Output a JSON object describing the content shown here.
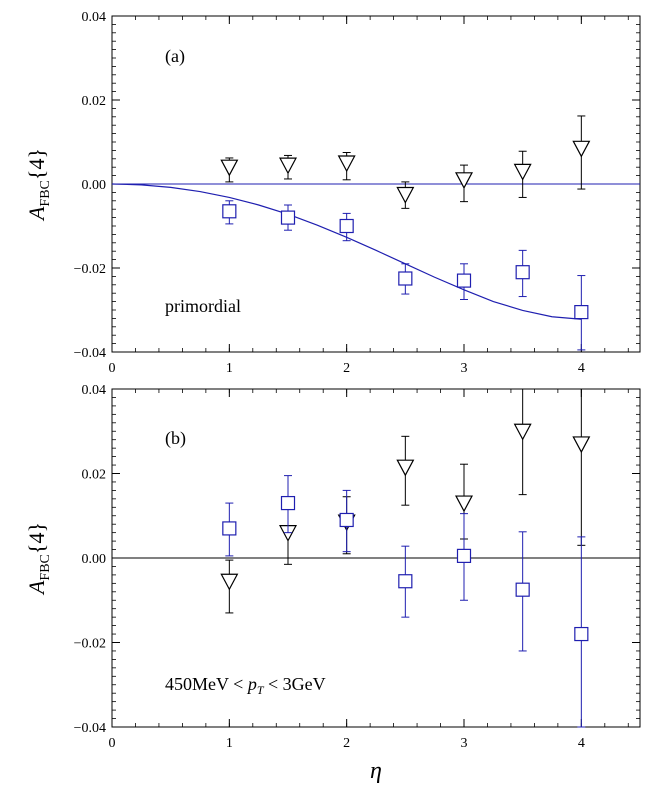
{
  "chart_data": [
    {
      "type": "scatter",
      "panel_label": "(a)",
      "annotation": "primordial",
      "ylabel_main": "A",
      "ylabel_sub": "FBC",
      "ylabel_suffix": "{4}",
      "xlabel": "",
      "xlim": [
        0,
        4.5
      ],
      "ylim": [
        -0.04,
        0.04
      ],
      "xticks": [
        0,
        1,
        2,
        3,
        4
      ],
      "xtick_labels": [
        "0",
        "1",
        "2",
        "3",
        "4"
      ],
      "yticks": [
        -0.04,
        -0.02,
        0.0,
        0.02,
        0.04
      ],
      "ytick_labels": [
        "−0.04",
        "−0.02",
        "0.00",
        "0.02",
        "0.04"
      ],
      "series": [
        {
          "marker": "triangle-down",
          "color": "#000000",
          "points": [
            {
              "x": 1.0,
              "y": 0.004,
              "lo": 0.0005,
              "hi": 0.0062
            },
            {
              "x": 1.5,
              "y": 0.0045,
              "lo": 0.0012,
              "hi": 0.0068
            },
            {
              "x": 2.0,
              "y": 0.005,
              "lo": 0.001,
              "hi": 0.0075
            },
            {
              "x": 2.5,
              "y": -0.0025,
              "lo": -0.0058,
              "hi": 0.0005
            },
            {
              "x": 3.0,
              "y": 0.001,
              "lo": -0.0042,
              "hi": 0.0045
            },
            {
              "x": 3.5,
              "y": 0.003,
              "lo": -0.0032,
              "hi": 0.0078
            },
            {
              "x": 4.0,
              "y": 0.0085,
              "lo": -0.0012,
              "hi": 0.0162
            }
          ]
        },
        {
          "marker": "square",
          "color": "#1f1fb0",
          "points": [
            {
              "x": 1.0,
              "y": -0.0065,
              "lo": -0.0095,
              "hi": -0.004
            },
            {
              "x": 1.5,
              "y": -0.008,
              "lo": -0.011,
              "hi": -0.005
            },
            {
              "x": 2.0,
              "y": -0.01,
              "lo": -0.0135,
              "hi": -0.007
            },
            {
              "x": 2.5,
              "y": -0.0225,
              "lo": -0.0262,
              "hi": -0.019
            },
            {
              "x": 3.0,
              "y": -0.023,
              "lo": -0.0275,
              "hi": -0.019
            },
            {
              "x": 3.5,
              "y": -0.021,
              "lo": -0.0268,
              "hi": -0.0158
            },
            {
              "x": 4.0,
              "y": -0.0305,
              "lo": -0.0395,
              "hi": -0.0218
            }
          ]
        }
      ],
      "reference_line": {
        "y": 0.0,
        "color": "#1f1fb0"
      },
      "fit_curve": {
        "color": "#1f1fb0",
        "points": [
          [
            0.0,
            0.0
          ],
          [
            0.25,
            -0.0002
          ],
          [
            0.5,
            -0.0008
          ],
          [
            0.75,
            -0.0018
          ],
          [
            1.0,
            -0.0032
          ],
          [
            1.25,
            -0.005
          ],
          [
            1.5,
            -0.0072
          ],
          [
            1.75,
            -0.0098
          ],
          [
            2.0,
            -0.0127
          ],
          [
            2.25,
            -0.0158
          ],
          [
            2.5,
            -0.019
          ],
          [
            2.75,
            -0.0222
          ],
          [
            3.0,
            -0.0252
          ],
          [
            3.25,
            -0.028
          ],
          [
            3.5,
            -0.0301
          ],
          [
            3.75,
            -0.0316
          ],
          [
            4.0,
            -0.0322
          ]
        ]
      }
    },
    {
      "type": "scatter",
      "panel_label": "(b)",
      "annotation_pre": "450MeV < ",
      "annotation_var": "p",
      "annotation_sub": "T",
      "annotation_post": " < 3GeV",
      "ylabel_main": "A",
      "ylabel_sub": "FBC",
      "ylabel_suffix": "{4}",
      "xlabel": "η",
      "xlim": [
        0,
        4.5
      ],
      "ylim": [
        -0.04,
        0.04
      ],
      "xticks": [
        0,
        1,
        2,
        3,
        4
      ],
      "xtick_labels": [
        "0",
        "1",
        "2",
        "3",
        "4"
      ],
      "yticks": [
        -0.04,
        -0.02,
        0.0,
        0.02,
        0.04
      ],
      "ytick_labels": [
        "−0.04",
        "−0.02",
        "0.00",
        "0.02",
        "0.04"
      ],
      "series": [
        {
          "marker": "triangle-down",
          "color": "#000000",
          "points": [
            {
              "x": 1.0,
              "y": -0.0055,
              "lo": -0.013,
              "hi": -0.0005
            },
            {
              "x": 1.5,
              "y": 0.006,
              "lo": -0.0015,
              "hi": 0.013
            },
            {
              "x": 2.0,
              "y": 0.0085,
              "lo": 0.001,
              "hi": 0.0145
            },
            {
              "x": 2.5,
              "y": 0.0215,
              "lo": 0.0125,
              "hi": 0.0288
            },
            {
              "x": 3.0,
              "y": 0.013,
              "lo": 0.0045,
              "hi": 0.0222
            },
            {
              "x": 3.5,
              "y": 0.03,
              "lo": 0.015,
              "hi": 0.04
            },
            {
              "x": 4.0,
              "y": 0.027,
              "lo": 0.003,
              "hi": 0.04
            }
          ]
        },
        {
          "marker": "square",
          "color": "#1f1fb0",
          "points": [
            {
              "x": 1.0,
              "y": 0.007,
              "lo": 0.0005,
              "hi": 0.013
            },
            {
              "x": 1.5,
              "y": 0.013,
              "lo": 0.006,
              "hi": 0.0195
            },
            {
              "x": 2.0,
              "y": 0.009,
              "lo": 0.0015,
              "hi": 0.016
            },
            {
              "x": 2.5,
              "y": -0.0055,
              "lo": -0.014,
              "hi": 0.0028
            },
            {
              "x": 3.0,
              "y": 0.0005,
              "lo": -0.01,
              "hi": 0.0105
            },
            {
              "x": 3.5,
              "y": -0.0075,
              "lo": -0.022,
              "hi": 0.0062
            },
            {
              "x": 4.0,
              "y": -0.018,
              "lo": -0.04,
              "hi": 0.005
            }
          ]
        }
      ],
      "reference_line": {
        "y": 0.0,
        "color": "#000000"
      }
    }
  ]
}
